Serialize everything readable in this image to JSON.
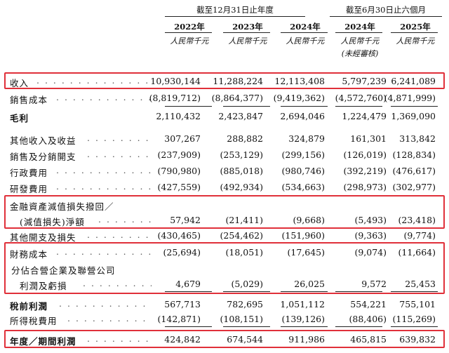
{
  "header": {
    "group_annual": "截至12月31日止年度",
    "group_interim": "截至6月30日止六個月",
    "years": [
      "2022年",
      "2023年",
      "2024年",
      "2024年",
      "2025年"
    ],
    "unit": "人民幣千元",
    "unaudited": "(未經審核)"
  },
  "rows": [
    {
      "label": "收入",
      "values": [
        "10,930,144",
        "11,288,224",
        "12,113,408",
        "5,797,239",
        "6,241,089"
      ]
    },
    {
      "label": "銷售成本",
      "values": [
        "(8,819,712)",
        "(8,864,377)",
        "(9,419,362)",
        "(4,572,760)",
        "(4,871,999)"
      ]
    },
    {
      "label": "毛利",
      "values": [
        "2,110,432",
        "2,423,847",
        "2,694,046",
        "1,224,479",
        "1,369,090"
      ]
    },
    {
      "label": "其他收入及收益",
      "values": [
        "307,267",
        "288,882",
        "324,879",
        "161,301",
        "313,842"
      ]
    },
    {
      "label": "銷售及分銷開支",
      "values": [
        "(237,909)",
        "(253,129)",
        "(299,156)",
        "(126,019)",
        "(128,834)"
      ]
    },
    {
      "label": "行政費用",
      "values": [
        "(790,980)",
        "(885,018)",
        "(980,746)",
        "(392,219)",
        "(476,617)"
      ]
    },
    {
      "label": "研發費用",
      "values": [
        "(427,559)",
        "(492,934)",
        "(534,663)",
        "(298,973)",
        "(302,977)"
      ]
    },
    {
      "label": "金融資產減值損失撥回／",
      "values": [
        "",
        "",
        "",
        "",
        ""
      ]
    },
    {
      "label": "(減值損失)淨額",
      "values": [
        "57,942",
        "(21,411)",
        "(9,668)",
        "(5,493)",
        "(23,418)"
      ]
    },
    {
      "label": "其他開支及損失",
      "values": [
        "(430,465)",
        "(254,462)",
        "(151,960)",
        "(9,363)",
        "(9,774)"
      ]
    },
    {
      "label": "財務成本",
      "values": [
        "(25,694)",
        "(18,051)",
        "(17,645)",
        "(9,074)",
        "(11,664)"
      ]
    },
    {
      "label": "分佔合營企業及聯營公司",
      "values": [
        "",
        "",
        "",
        "",
        ""
      ]
    },
    {
      "label": "利潤及虧損",
      "values": [
        "4,679",
        "(5,029)",
        "26,025",
        "9,572",
        "25,453"
      ]
    },
    {
      "label": "稅前利潤",
      "values": [
        "567,713",
        "782,695",
        "1,051,112",
        "554,221",
        "755,101"
      ]
    },
    {
      "label": "所得稅費用",
      "values": [
        "(142,871)",
        "(108,151)",
        "(139,126)",
        "(88,406)",
        "(115,269)"
      ]
    },
    {
      "label": "年度／期間利潤",
      "values": [
        "424,842",
        "674,544",
        "911,986",
        "465,815",
        "639,832"
      ]
    }
  ]
}
